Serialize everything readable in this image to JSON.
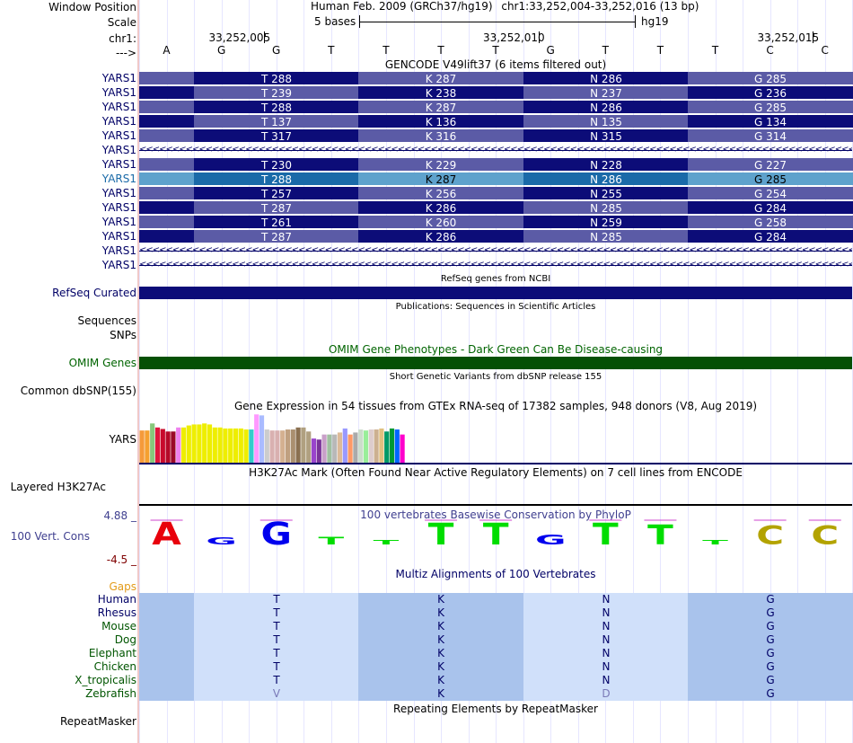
{
  "header": {
    "window_position_label": "Window Position",
    "scale_label": "Scale",
    "chr_label": "chr1:",
    "strand_label": "--->",
    "assembly_text": "Human Feb. 2009 (GRCh37/hg19)",
    "position_text": "chr1:33,252,004-33,252,016 (13 bp)",
    "scale_text": "5 bases",
    "scale_db": "hg19",
    "coords": [
      "33,252,005",
      "33,252,010",
      "33,252,015"
    ],
    "bases": [
      "A",
      "G",
      "G",
      "T",
      "T",
      "T",
      "T",
      "G",
      "T",
      "T",
      "T",
      "C",
      "C"
    ]
  },
  "gencode": {
    "title": "GENCODE V49lift37 (6 items filtered out)",
    "rows": [
      {
        "name": "YARS1",
        "type": "coding",
        "highlight": false,
        "aa": [
          "T 288",
          "K 287",
          "N 286",
          "G 285"
        ]
      },
      {
        "name": "YARS1",
        "type": "coding",
        "highlight": false,
        "aa": [
          "T 239",
          "K 238",
          "N 237",
          "G 236"
        ]
      },
      {
        "name": "YARS1",
        "type": "coding",
        "highlight": false,
        "aa": [
          "T 288",
          "K 287",
          "N 286",
          "G 285"
        ]
      },
      {
        "name": "YARS1",
        "type": "coding",
        "highlight": false,
        "aa": [
          "T 137",
          "K 136",
          "N 135",
          "G 134"
        ]
      },
      {
        "name": "YARS1",
        "type": "coding",
        "highlight": false,
        "aa": [
          "T 317",
          "K 316",
          "N 315",
          "G 314"
        ]
      },
      {
        "name": "YARS1",
        "type": "intron",
        "highlight": false,
        "aa": []
      },
      {
        "name": "YARS1",
        "type": "coding",
        "highlight": false,
        "aa": [
          "T 230",
          "K 229",
          "N 228",
          "G 227"
        ]
      },
      {
        "name": "YARS1",
        "type": "coding",
        "highlight": true,
        "aa": [
          "T 288",
          "K 287",
          "N 286",
          "G 285"
        ]
      },
      {
        "name": "YARS1",
        "type": "coding",
        "highlight": false,
        "aa": [
          "T 257",
          "K 256",
          "N 255",
          "G 254"
        ]
      },
      {
        "name": "YARS1",
        "type": "coding",
        "highlight": false,
        "aa": [
          "T 287",
          "K 286",
          "N 285",
          "G 284"
        ]
      },
      {
        "name": "YARS1",
        "type": "coding",
        "highlight": false,
        "aa": [
          "T 261",
          "K 260",
          "N 259",
          "G 258"
        ]
      },
      {
        "name": "YARS1",
        "type": "coding",
        "highlight": false,
        "aa": [
          "T 287",
          "K 286",
          "N 285",
          "G 284"
        ]
      },
      {
        "name": "YARS1",
        "type": "intron",
        "highlight": false,
        "aa": []
      },
      {
        "name": "YARS1",
        "type": "intron",
        "highlight": false,
        "aa": []
      }
    ],
    "intron_arrows": "<<<<<<<<<<<<<<<<<<<<<<<<<<<<<<<<<<<<<<<<<<<<<<<<<<<<<<<<<<<<<<<<<<<<<<<<<<<<<<<<<<<<<<<<<<<<<<<<<<<<<<<<<<<<<<<<<<<<<<<<<<<<<<<<<<<<<<<<<<"
  },
  "refseq": {
    "title": "RefSeq genes from NCBI",
    "label": "RefSeq Curated"
  },
  "publications": {
    "title": "Publications: Sequences in Scientific Articles",
    "label1": "Sequences",
    "label2": "SNPs"
  },
  "omim": {
    "title": "OMIM Gene Phenotypes - Dark Green Can Be Disease-causing",
    "label": "OMIM Genes"
  },
  "dbsnp": {
    "title": "Short Genetic Variants from dbSNP release 155",
    "label": "Common dbSNP(155)"
  },
  "gtex": {
    "title": "Gene Expression in 54 tissues from GTEx RNA-seq of 17382 samples, 948 donors (V8, Aug 2019)",
    "label": "YARS",
    "bars": [
      {
        "value": 0.64,
        "color": "#f59a3a"
      },
      {
        "value": 0.64,
        "color": "#f5a030"
      },
      {
        "value": 0.78,
        "color": "#86c87a"
      },
      {
        "value": 0.7,
        "color": "#e0143c"
      },
      {
        "value": 0.67,
        "color": "#c80a2c"
      },
      {
        "value": 0.62,
        "color": "#b40a28"
      },
      {
        "value": 0.62,
        "color": "#9a0a28"
      },
      {
        "value": 0.7,
        "color": "#ee82ee"
      },
      {
        "value": 0.7,
        "color": "#eeee00"
      },
      {
        "value": 0.74,
        "color": "#eeee00"
      },
      {
        "value": 0.76,
        "color": "#eeee00"
      },
      {
        "value": 0.76,
        "color": "#eeee00"
      },
      {
        "value": 0.78,
        "color": "#eeee00"
      },
      {
        "value": 0.76,
        "color": "#eeee00"
      },
      {
        "value": 0.7,
        "color": "#eeee00"
      },
      {
        "value": 0.7,
        "color": "#eeee00"
      },
      {
        "value": 0.68,
        "color": "#eeee00"
      },
      {
        "value": 0.68,
        "color": "#eeee00"
      },
      {
        "value": 0.68,
        "color": "#eeee00"
      },
      {
        "value": 0.68,
        "color": "#eeee00"
      },
      {
        "value": 0.66,
        "color": "#eeee00"
      },
      {
        "value": 0.66,
        "color": "#33cccc"
      },
      {
        "value": 0.96,
        "color": "#ff99ff"
      },
      {
        "value": 0.94,
        "color": "#aabbff"
      },
      {
        "value": 0.66,
        "color": "#cccccc"
      },
      {
        "value": 0.64,
        "color": "#d9b0b0"
      },
      {
        "value": 0.64,
        "color": "#d9b0b0"
      },
      {
        "value": 0.64,
        "color": "#d4b090"
      },
      {
        "value": 0.66,
        "color": "#c0a080"
      },
      {
        "value": 0.66,
        "color": "#aa9070"
      },
      {
        "value": 0.7,
        "color": "#8a7050"
      },
      {
        "value": 0.7,
        "color": "#b0a080"
      },
      {
        "value": 0.62,
        "color": "#b0a080"
      },
      {
        "value": 0.48,
        "color": "#9944cc"
      },
      {
        "value": 0.46,
        "color": "#7a3399"
      },
      {
        "value": 0.56,
        "color": "#c9a0c9"
      },
      {
        "value": 0.56,
        "color": "#a0c0a0"
      },
      {
        "value": 0.56,
        "color": "#b8b8b8"
      },
      {
        "value": 0.6,
        "color": "#ddbb99"
      },
      {
        "value": 0.68,
        "color": "#9999ff"
      },
      {
        "value": 0.56,
        "color": "#ff9966"
      },
      {
        "value": 0.6,
        "color": "#aaaaaa"
      },
      {
        "value": 0.66,
        "color": "#ccddcc"
      },
      {
        "value": 0.64,
        "color": "#99ee99"
      },
      {
        "value": 0.66,
        "color": "#ddcccc"
      },
      {
        "value": 0.66,
        "color": "#ccb090"
      },
      {
        "value": 0.68,
        "color": "#e0c080"
      },
      {
        "value": 0.62,
        "color": "#009966"
      },
      {
        "value": 0.68,
        "color": "#009933"
      },
      {
        "value": 0.66,
        "color": "#0066ff"
      },
      {
        "value": 0.56,
        "color": "#ff00cc"
      }
    ]
  },
  "h3k27ac": {
    "title": "H3K27Ac Mark (Often Found Near Active Regulatory Elements) on 7 cell lines from ENCODE",
    "label": "Layered H3K27Ac"
  },
  "conservation": {
    "title": "100 vertebrates Basewise Conservation by PhyloP",
    "label": "100 Vert. Cons",
    "max_label": "4.88 _",
    "min_label": "-4.5 _",
    "max": 4.88,
    "min": -4.5,
    "bases": [
      {
        "letter": "A",
        "score": 4.88,
        "color": "#e8000c"
      },
      {
        "letter": "G",
        "score": 1.5,
        "color": "#0000ee"
      },
      {
        "letter": "G",
        "score": 4.88,
        "color": "#0000ee"
      },
      {
        "letter": "T",
        "score": 1.6,
        "color": "#00dd00"
      },
      {
        "letter": "T",
        "score": 1.0,
        "color": "#00dd00"
      },
      {
        "letter": "T",
        "score": 4.6,
        "color": "#00dd00"
      },
      {
        "letter": "T",
        "score": 4.6,
        "color": "#00dd00"
      },
      {
        "letter": "G",
        "score": 2.1,
        "color": "#0000ee"
      },
      {
        "letter": "T",
        "score": 4.6,
        "color": "#00dd00"
      },
      {
        "letter": "T",
        "score": 4.2,
        "color": "#00dd00"
      },
      {
        "letter": "T",
        "score": 1.0,
        "color": "#00dd00"
      },
      {
        "letter": "C",
        "score": 4.0,
        "color": "#b3a300"
      },
      {
        "letter": "C",
        "score": 4.0,
        "color": "#b3a300"
      }
    ]
  },
  "multiz": {
    "title": "Multiz Alignments of 100 Vertebrates",
    "gaps_label": "Gaps",
    "species": [
      {
        "name": "Human",
        "color": "#000066",
        "aa": [
          "T",
          "K",
          "N",
          "G"
        ]
      },
      {
        "name": "Rhesus",
        "color": "#000066",
        "aa": [
          "T",
          "K",
          "N",
          "G"
        ]
      },
      {
        "name": "Mouse",
        "color": "#005500",
        "aa": [
          "T",
          "K",
          "N",
          "G"
        ]
      },
      {
        "name": "Dog",
        "color": "#005500",
        "aa": [
          "T",
          "K",
          "N",
          "G"
        ]
      },
      {
        "name": "Elephant",
        "color": "#005500",
        "aa": [
          "T",
          "K",
          "N",
          "G"
        ]
      },
      {
        "name": "Chicken",
        "color": "#005500",
        "aa": [
          "T",
          "K",
          "N",
          "G"
        ]
      },
      {
        "name": "X_tropicalis",
        "color": "#005500",
        "aa": [
          "T",
          "K",
          "N",
          "G"
        ]
      },
      {
        "name": "Zebrafish",
        "color": "#005500",
        "aa": [
          "V",
          "K",
          "D",
          "G"
        ]
      }
    ]
  },
  "repeatmasker": {
    "title": "Repeating Elements by RepeatMasker",
    "label": "RepeatMasker"
  }
}
